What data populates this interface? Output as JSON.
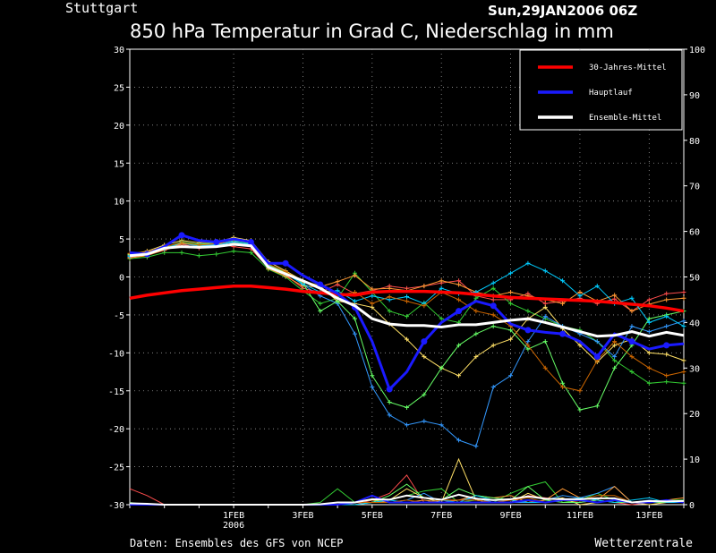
{
  "location": "Stuttgart",
  "run_time": "Sun,29JAN2006 06Z",
  "title": "850 hPa Temperatur in Grad C, Niederschlag in mm",
  "footer_left": "Daten: Ensembles des GFS von NCEP",
  "footer_right": "Wetterzentrale",
  "colors": {
    "background": "#000000",
    "grid": "#9a9a9a",
    "climate": "#ff0000",
    "main_run": "#1a1aff",
    "ensemble_mean": "#ffffff",
    "members": [
      "#ff4d4d",
      "#33cc33",
      "#ffe066",
      "#3399ff",
      "#ff9933",
      "#66ff66",
      "#00ccff",
      "#cc6600"
    ]
  },
  "chart_data": {
    "type": "line",
    "x_ticks": [
      {
        "day": 3,
        "label": [
          "1FEB",
          "2006"
        ]
      },
      {
        "day": 5,
        "label": [
          "3FEB"
        ]
      },
      {
        "day": 7,
        "label": [
          "5FEB"
        ]
      },
      {
        "day": 9,
        "label": [
          "7FEB"
        ]
      },
      {
        "day": 11,
        "label": [
          "9FEB"
        ]
      },
      {
        "day": 13,
        "label": [
          "11FEB"
        ]
      },
      {
        "day": 15,
        "label": [
          "13FEB"
        ]
      }
    ],
    "xlim": [
      0,
      16
    ],
    "ylim_left": [
      -30,
      30
    ],
    "yticks_left": [
      -30,
      -25,
      -20,
      -15,
      -10,
      -5,
      0,
      5,
      10,
      15,
      20,
      25,
      30
    ],
    "ylim_right": [
      0,
      100
    ],
    "yticks_right": [
      0,
      10,
      20,
      30,
      40,
      50,
      60,
      70,
      80,
      90,
      100
    ],
    "grid": true,
    "legend_position": "top-right",
    "legend": [
      {
        "label": "30-Jahres-Mittel",
        "color": "#ff0000"
      },
      {
        "label": "Hauptlauf",
        "color": "#1a1aff"
      },
      {
        "label": "Ensemble-Mittel",
        "color": "#ffffff"
      }
    ],
    "x": [
      0,
      0.5,
      1,
      1.5,
      2,
      2.5,
      3,
      3.5,
      4,
      4.5,
      5,
      5.5,
      6,
      6.5,
      7,
      7.5,
      8,
      8.5,
      9,
      9.5,
      10,
      10.5,
      11,
      11.5,
      12,
      12.5,
      13,
      13.5,
      14,
      14.5,
      15,
      15.5,
      16
    ],
    "climate": [
      -2.8,
      -2.4,
      -2.1,
      -1.8,
      -1.6,
      -1.4,
      -1.2,
      -1.2,
      -1.4,
      -1.6,
      -1.9,
      -2.1,
      -2.3,
      -2.4,
      -2.0,
      -1.9,
      -1.9,
      -1.9,
      -2.0,
      -2.1,
      -2.3,
      -2.5,
      -2.7,
      -2.8,
      -2.9,
      -3.0,
      -3.1,
      -3.2,
      -3.4,
      -3.6,
      -3.8,
      -4.1,
      -4.5
    ],
    "main_run": [
      3.2,
      3.0,
      4.0,
      5.5,
      4.8,
      4.6,
      5.0,
      4.6,
      1.8,
      1.8,
      0.2,
      -1.0,
      -2.2,
      -4.0,
      -8.5,
      -14.8,
      -12.5,
      -8.5,
      -6.0,
      -4.5,
      -3.2,
      -3.8,
      -6.2,
      -7.0,
      -7.3,
      -7.5,
      -8.5,
      -10.5,
      -7.5,
      -8.5,
      -9.5,
      -9.0,
      -8.8
    ],
    "ensemble_mean": [
      2.8,
      3.0,
      3.8,
      4.0,
      3.9,
      4.0,
      4.3,
      4.1,
      1.3,
      0.4,
      -0.5,
      -1.5,
      -2.8,
      -3.8,
      -5.5,
      -6.2,
      -6.4,
      -6.4,
      -6.6,
      -6.3,
      -6.3,
      -6.0,
      -5.7,
      -5.5,
      -6.0,
      -6.6,
      -7.2,
      -7.8,
      -7.7,
      -7.2,
      -7.8,
      -7.3,
      -7.7
    ],
    "members": [
      [
        2.6,
        2.9,
        3.5,
        4.3,
        3.8,
        4.4,
        4.0,
        3.7,
        1.2,
        0.3,
        -1.5,
        -2.0,
        -1.0,
        -2.2,
        -1.8,
        -1.2,
        -1.5,
        -1.2,
        -0.8,
        -0.5,
        -2.5,
        -3.0,
        -3.0,
        -2.2,
        -3.5,
        -3.2,
        -2.8,
        -3.5,
        -2.9,
        -4.5,
        -3.0,
        -2.2,
        -2.0
      ],
      [
        2.4,
        2.6,
        3.2,
        3.2,
        2.8,
        3.0,
        3.4,
        3.2,
        1.0,
        0.0,
        -1.8,
        -3.5,
        -2.8,
        0.5,
        -2.0,
        -4.5,
        -5.2,
        -3.4,
        -5.5,
        -6.0,
        -2.8,
        -1.5,
        -3.5,
        -4.5,
        -5.5,
        -6.5,
        -7.0,
        -8.5,
        -11.0,
        -12.5,
        -14.0,
        -13.8,
        -14.0
      ],
      [
        3.0,
        3.4,
        4.2,
        4.8,
        4.5,
        4.6,
        5.2,
        4.8,
        2.0,
        0.8,
        -0.5,
        -1.2,
        -3.2,
        -3.5,
        -4.0,
        -6.2,
        -8.2,
        -10.5,
        -12.0,
        -13.0,
        -10.5,
        -9.0,
        -8.2,
        -5.5,
        -4.0,
        -6.8,
        -9.0,
        -11.2,
        -9.0,
        -8.2,
        -10.0,
        -10.2,
        -11.0
      ],
      [
        2.8,
        3.1,
        3.8,
        4.4,
        4.1,
        4.3,
        4.7,
        4.5,
        1.5,
        0.5,
        -1.0,
        -2.5,
        -3.5,
        -7.5,
        -14.5,
        -18.2,
        -19.5,
        -19.0,
        -19.5,
        -21.5,
        -22.3,
        -14.5,
        -13.0,
        -8.5,
        -5.2,
        -6.5,
        -7.5,
        -8.5,
        -10.5,
        -6.5,
        -7.2,
        -6.5,
        -5.8
      ],
      [
        2.5,
        2.8,
        3.6,
        4.4,
        4.2,
        4.4,
        4.5,
        4.2,
        1.1,
        0.1,
        -1.2,
        -1.3,
        -0.6,
        0.2,
        -1.6,
        -1.5,
        -1.8,
        -1.2,
        -0.5,
        -1.0,
        -2.0,
        -2.5,
        -2.0,
        -2.5,
        -3.0,
        -3.5,
        -2.0,
        -3.2,
        -2.4,
        -4.5,
        -3.6,
        -3.0,
        -2.8
      ],
      [
        2.9,
        3.2,
        3.9,
        4.6,
        4.3,
        4.5,
        4.8,
        4.4,
        1.6,
        0.6,
        -0.8,
        -4.5,
        -3.2,
        -5.5,
        -13.0,
        -16.5,
        -17.2,
        -15.5,
        -12.0,
        -9.0,
        -7.5,
        -6.5,
        -7.0,
        -9.5,
        -8.5,
        -14.0,
        -17.5,
        -17.0,
        -12.0,
        -9.0,
        -5.5,
        -5.0,
        -4.5
      ],
      [
        2.7,
        3.0,
        3.7,
        4.5,
        4.1,
        4.2,
        4.6,
        4.3,
        1.4,
        0.4,
        -0.9,
        -2.0,
        -1.8,
        -3.2,
        -2.5,
        -3.0,
        -2.6,
        -3.5,
        -1.5,
        -2.2,
        -2.0,
        -0.8,
        0.5,
        1.8,
        0.8,
        -0.5,
        -2.5,
        -1.2,
        -3.5,
        -2.8,
        -6.0,
        -5.2,
        -6.5
      ],
      [
        3.1,
        3.3,
        4.0,
        4.5,
        4.2,
        4.4,
        4.9,
        4.6,
        1.7,
        0.7,
        -0.6,
        -1.5,
        -2.4,
        -2.0,
        -3.5,
        -2.6,
        -3.2,
        -3.8,
        -2.0,
        -3.0,
        -4.5,
        -5.0,
        -6.5,
        -9.0,
        -12.0,
        -14.5,
        -15.0,
        -11.0,
        -8.5,
        -10.5,
        -12.0,
        -13.0,
        -12.5
      ]
    ],
    "precipitation": [
      [
        3.5,
        2.0,
        0.0,
        0.0,
        0.0,
        0.0,
        0.0,
        0.0,
        0.0,
        0.0,
        0.0,
        0.0,
        0.5,
        0.0,
        1.0,
        2.5,
        6.5,
        0.5,
        1.0,
        1.0,
        1.0,
        0.5,
        0.5,
        2.0,
        1.5,
        1.0,
        0.5,
        1.0,
        0.5,
        0.0,
        0.5,
        1.0,
        0.5
      ],
      [
        0.5,
        0.0,
        0.0,
        0.0,
        0.0,
        0.0,
        0.0,
        0.0,
        0.0,
        0.0,
        0.0,
        0.5,
        3.5,
        0.5,
        1.0,
        1.0,
        2.0,
        3.0,
        3.5,
        0.5,
        1.0,
        0.5,
        2.5,
        4.0,
        5.0,
        0.5,
        1.0,
        2.5,
        1.0,
        0.5,
        0.5,
        1.0,
        1.0
      ],
      [
        0.0,
        0.0,
        0.0,
        0.0,
        0.0,
        0.0,
        0.0,
        0.0,
        0.0,
        0.0,
        0.0,
        0.0,
        0.0,
        0.5,
        0.5,
        1.0,
        3.5,
        1.5,
        0.5,
        10.0,
        1.0,
        0.5,
        0.5,
        2.5,
        1.0,
        1.5,
        0.0,
        0.5,
        1.0,
        0.5,
        0.0,
        0.5,
        0.5
      ],
      [
        0.0,
        0.0,
        0.0,
        0.0,
        0.0,
        0.0,
        0.0,
        0.0,
        0.0,
        0.0,
        0.0,
        0.0,
        0.0,
        0.5,
        1.0,
        0.5,
        1.0,
        2.5,
        0.5,
        1.0,
        1.5,
        0.5,
        0.5,
        0.5,
        1.0,
        2.0,
        1.5,
        2.5,
        4.0,
        0.5,
        1.0,
        0.5,
        0.5
      ],
      [
        0.0,
        0.0,
        0.0,
        0.0,
        0.0,
        0.0,
        0.0,
        0.0,
        0.0,
        0.0,
        0.0,
        0.0,
        0.0,
        0.5,
        1.0,
        0.5,
        0.5,
        1.0,
        0.5,
        1.0,
        2.0,
        1.5,
        2.0,
        0.5,
        1.0,
        3.5,
        1.5,
        1.0,
        4.0,
        0.5,
        0.5,
        1.0,
        1.5
      ],
      [
        0.0,
        0.0,
        0.0,
        0.0,
        0.0,
        0.0,
        0.0,
        0.0,
        0.0,
        0.0,
        0.0,
        0.0,
        0.0,
        0.0,
        0.5,
        2.0,
        4.5,
        1.5,
        1.0,
        3.5,
        2.0,
        1.5,
        1.0,
        4.0,
        1.0,
        0.5,
        0.5,
        1.0,
        0.5,
        0.5,
        0.5,
        0.5,
        1.0
      ],
      [
        0.0,
        0.0,
        0.0,
        0.0,
        0.0,
        0.0,
        0.0,
        0.0,
        0.0,
        0.0,
        0.0,
        0.0,
        0.0,
        0.0,
        0.5,
        1.0,
        0.5,
        0.5,
        1.0,
        0.5,
        2.0,
        1.0,
        1.0,
        0.5,
        0.5,
        1.0,
        1.5,
        1.0,
        0.5,
        1.0,
        1.5,
        0.5,
        0.5
      ],
      [
        0.0,
        0.0,
        0.0,
        0.0,
        0.0,
        0.0,
        0.0,
        0.0,
        0.0,
        0.0,
        0.0,
        0.0,
        0.0,
        0.5,
        0.5,
        0.5,
        1.0,
        0.5,
        1.0,
        1.0,
        1.0,
        0.5,
        1.0,
        1.5,
        0.5,
        1.0,
        1.0,
        2.0,
        2.0,
        0.5,
        0.5,
        1.0,
        0.5
      ]
    ],
    "precip_main_run": [
      0.0,
      0.0,
      0.0,
      0.0,
      0.0,
      0.0,
      0.0,
      0.0,
      0.0,
      0.0,
      0.0,
      0.0,
      0.0,
      0.5,
      2.0,
      0.5,
      0.5,
      0.5,
      0.5,
      0.5,
      0.5,
      0.5,
      0.5,
      1.0,
      0.5,
      1.0,
      1.0,
      0.5,
      1.0,
      0.5,
      0.5,
      1.0,
      0.5
    ],
    "precip_mean": [
      0.3,
      0.2,
      0.0,
      0.0,
      0.0,
      0.0,
      0.0,
      0.0,
      0.0,
      0.0,
      0.0,
      0.1,
      0.5,
      0.5,
      1.2,
      1.1,
      2.0,
      1.5,
      1.1,
      2.2,
      1.3,
      1.0,
      1.2,
      1.8,
      1.3,
      1.2,
      1.2,
      1.4,
      1.4,
      0.5,
      0.8,
      0.7,
      0.8
    ]
  }
}
